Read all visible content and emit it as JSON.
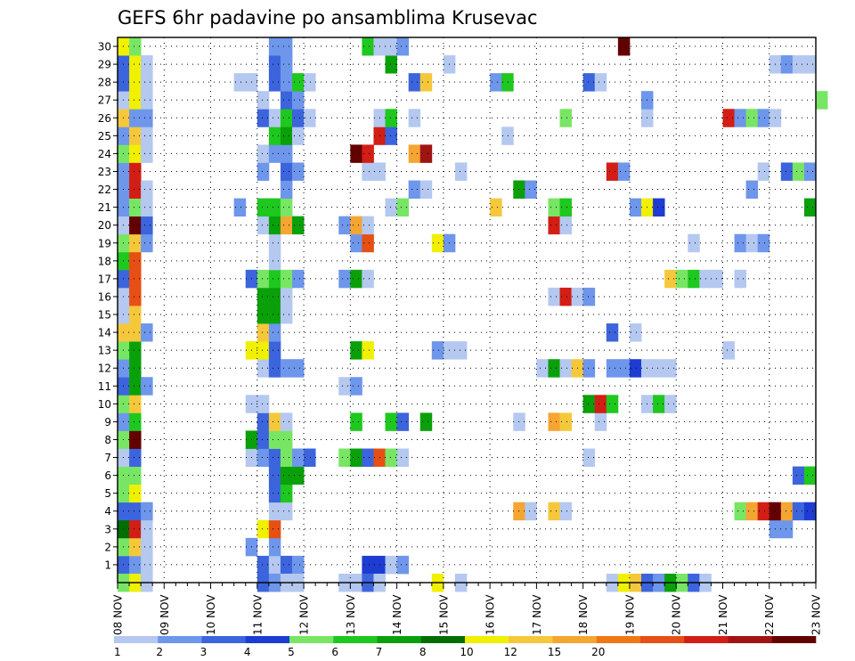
{
  "chart_data": {
    "type": "heatmap",
    "title": "GEFS 6hr padavine po ansamblima Krusevac",
    "xlabel": "",
    "ylabel": "",
    "x_ticks": [
      "08 NOV",
      "09 NOV",
      "10 NOV",
      "11 NOV",
      "12 NOV",
      "13 NOV",
      "14 NOV",
      "15 NOV",
      "16 NOV",
      "17 NOV",
      "18 NOV",
      "19 NOV",
      "20 NOV",
      "21 NOV",
      "22 NOV",
      "23 NOV"
    ],
    "y_ticks": [
      1,
      2,
      3,
      4,
      5,
      6,
      7,
      8,
      9,
      10,
      11,
      12,
      13,
      14,
      15,
      16,
      17,
      18,
      19,
      20,
      21,
      22,
      23,
      24,
      25,
      26,
      27,
      28,
      29,
      30
    ],
    "x_range": [
      "08 NOV 00z",
      "23 NOV 00z"
    ],
    "steps_per_day": 4,
    "y_range": [
      0,
      30
    ],
    "grid": true,
    "colorbar": {
      "colors": [
        "#b4c8f0",
        "#6e96eb",
        "#3c64dc",
        "#1e3cd2",
        "#78e664",
        "#1ec81e",
        "#0aa00a",
        "#006e00",
        "#f0f000",
        "#f5c83c",
        "#f5a532",
        "#f07814",
        "#e65014",
        "#d21e14",
        "#a01414",
        "#640000"
      ],
      "labels": [
        "1",
        "2",
        "3",
        "4",
        "5",
        "6",
        "7",
        "8",
        "10",
        "12",
        "15",
        "20"
      ]
    },
    "cells": [
      [
        1,
        0,
        3
      ],
      [
        1,
        1,
        2
      ],
      [
        1,
        2,
        1
      ],
      [
        1,
        12,
        3
      ],
      [
        1,
        13,
        1
      ],
      [
        1,
        14,
        3
      ],
      [
        1,
        15,
        2
      ],
      [
        1,
        21,
        4
      ],
      [
        1,
        22,
        4
      ],
      [
        1,
        23,
        1
      ],
      [
        1,
        24,
        2
      ],
      [
        2,
        0,
        5
      ],
      [
        2,
        1,
        10
      ],
      [
        2,
        2,
        1
      ],
      [
        2,
        11,
        2
      ],
      [
        2,
        13,
        2
      ],
      [
        3,
        0,
        8
      ],
      [
        3,
        1,
        14
      ],
      [
        3,
        2,
        1
      ],
      [
        3,
        12,
        9
      ],
      [
        3,
        13,
        13
      ],
      [
        3,
        56,
        2
      ],
      [
        3,
        57,
        2
      ],
      [
        4,
        0,
        3
      ],
      [
        4,
        1,
        3
      ],
      [
        4,
        2,
        2
      ],
      [
        4,
        13,
        1
      ],
      [
        4,
        14,
        1
      ],
      [
        4,
        34,
        11
      ],
      [
        4,
        35,
        1
      ],
      [
        4,
        37,
        10
      ],
      [
        4,
        38,
        1
      ],
      [
        4,
        53,
        5
      ],
      [
        4,
        54,
        11
      ],
      [
        4,
        55,
        14
      ],
      [
        4,
        56,
        16
      ],
      [
        4,
        57,
        11
      ],
      [
        4,
        58,
        3
      ],
      [
        4,
        59,
        4
      ],
      [
        5,
        0,
        5
      ],
      [
        5,
        1,
        9
      ],
      [
        5,
        13,
        3
      ],
      [
        5,
        14,
        6
      ],
      [
        6,
        0,
        5
      ],
      [
        6,
        1,
        5
      ],
      [
        6,
        13,
        3
      ],
      [
        6,
        14,
        7
      ],
      [
        6,
        15,
        7
      ],
      [
        6,
        58,
        3
      ],
      [
        6,
        59,
        6
      ],
      [
        7,
        0,
        1
      ],
      [
        7,
        1,
        3
      ],
      [
        7,
        11,
        1
      ],
      [
        7,
        12,
        2
      ],
      [
        7,
        13,
        3
      ],
      [
        7,
        14,
        5
      ],
      [
        7,
        15,
        2
      ],
      [
        7,
        16,
        3
      ],
      [
        7,
        19,
        5
      ],
      [
        7,
        20,
        7
      ],
      [
        7,
        21,
        3
      ],
      [
        7,
        22,
        13
      ],
      [
        7,
        23,
        5
      ],
      [
        7,
        24,
        1
      ],
      [
        7,
        40,
        1
      ],
      [
        8,
        0,
        5
      ],
      [
        8,
        1,
        16
      ],
      [
        8,
        11,
        7
      ],
      [
        8,
        12,
        3
      ],
      [
        8,
        13,
        5
      ],
      [
        8,
        14,
        5
      ],
      [
        9,
        0,
        2
      ],
      [
        9,
        1,
        6
      ],
      [
        9,
        12,
        3
      ],
      [
        9,
        13,
        10
      ],
      [
        9,
        14,
        1
      ],
      [
        9,
        20,
        6
      ],
      [
        9,
        23,
        6
      ],
      [
        9,
        24,
        3
      ],
      [
        9,
        26,
        7
      ],
      [
        9,
        34,
        1
      ],
      [
        9,
        37,
        11
      ],
      [
        9,
        38,
        10
      ],
      [
        9,
        41,
        1
      ],
      [
        10,
        0,
        5
      ],
      [
        10,
        1,
        10
      ],
      [
        10,
        11,
        1
      ],
      [
        10,
        12,
        1
      ],
      [
        10,
        40,
        7
      ],
      [
        10,
        41,
        14
      ],
      [
        10,
        42,
        6
      ],
      [
        10,
        45,
        1
      ],
      [
        10,
        46,
        6
      ],
      [
        10,
        47,
        1
      ],
      [
        11,
        0,
        3
      ],
      [
        11,
        1,
        7
      ],
      [
        11,
        2,
        2
      ],
      [
        11,
        19,
        1
      ],
      [
        11,
        20,
        2
      ],
      [
        12,
        0,
        2
      ],
      [
        12,
        1,
        7
      ],
      [
        12,
        12,
        1
      ],
      [
        12,
        13,
        3
      ],
      [
        12,
        14,
        2
      ],
      [
        12,
        15,
        2
      ],
      [
        12,
        36,
        1
      ],
      [
        12,
        37,
        7
      ],
      [
        12,
        38,
        1
      ],
      [
        12,
        39,
        10
      ],
      [
        12,
        40,
        2
      ],
      [
        12,
        42,
        2
      ],
      [
        12,
        43,
        2
      ],
      [
        12,
        44,
        4
      ],
      [
        12,
        45,
        1
      ],
      [
        12,
        46,
        1
      ],
      [
        12,
        47,
        1
      ],
      [
        13,
        0,
        5
      ],
      [
        13,
        1,
        7
      ],
      [
        13,
        11,
        9
      ],
      [
        13,
        12,
        9
      ],
      [
        13,
        13,
        3
      ],
      [
        13,
        20,
        7
      ],
      [
        13,
        21,
        9
      ],
      [
        13,
        27,
        2
      ],
      [
        13,
        28,
        1
      ],
      [
        13,
        29,
        1
      ],
      [
        13,
        52,
        1
      ],
      [
        14,
        0,
        10
      ],
      [
        14,
        1,
        10
      ],
      [
        14,
        2,
        2
      ],
      [
        14,
        12,
        10
      ],
      [
        14,
        13,
        2
      ],
      [
        14,
        42,
        3
      ],
      [
        14,
        44,
        1
      ],
      [
        15,
        0,
        1
      ],
      [
        15,
        1,
        10
      ],
      [
        15,
        12,
        7
      ],
      [
        15,
        13,
        7
      ],
      [
        15,
        14,
        1
      ],
      [
        16,
        0,
        1
      ],
      [
        16,
        1,
        13
      ],
      [
        16,
        12,
        7
      ],
      [
        16,
        13,
        7
      ],
      [
        16,
        14,
        1
      ],
      [
        16,
        37,
        1
      ],
      [
        16,
        38,
        14
      ],
      [
        16,
        39,
        1
      ],
      [
        16,
        40,
        2
      ],
      [
        17,
        0,
        3
      ],
      [
        17,
        1,
        13
      ],
      [
        17,
        11,
        3
      ],
      [
        17,
        12,
        5
      ],
      [
        17,
        13,
        6
      ],
      [
        17,
        14,
        5
      ],
      [
        17,
        15,
        2
      ],
      [
        17,
        19,
        2
      ],
      [
        17,
        20,
        7
      ],
      [
        17,
        21,
        1
      ],
      [
        17,
        47,
        10
      ],
      [
        17,
        48,
        5
      ],
      [
        17,
        49,
        6
      ],
      [
        17,
        50,
        1
      ],
      [
        17,
        51,
        1
      ],
      [
        17,
        53,
        1
      ],
      [
        18,
        0,
        6
      ],
      [
        18,
        1,
        13
      ],
      [
        18,
        13,
        1
      ],
      [
        19,
        0,
        5
      ],
      [
        19,
        1,
        10
      ],
      [
        19,
        2,
        2
      ],
      [
        19,
        13,
        1
      ],
      [
        19,
        20,
        2
      ],
      [
        19,
        21,
        13
      ],
      [
        19,
        27,
        9
      ],
      [
        19,
        28,
        2
      ],
      [
        19,
        49,
        1
      ],
      [
        19,
        53,
        2
      ],
      [
        19,
        54,
        1
      ],
      [
        19,
        55,
        2
      ],
      [
        20,
        0,
        1
      ],
      [
        20,
        1,
        16
      ],
      [
        20,
        2,
        3
      ],
      [
        20,
        12,
        1
      ],
      [
        20,
        13,
        7
      ],
      [
        20,
        14,
        11
      ],
      [
        20,
        15,
        7
      ],
      [
        20,
        19,
        2
      ],
      [
        20,
        20,
        11
      ],
      [
        20,
        21,
        1
      ],
      [
        20,
        37,
        14
      ],
      [
        20,
        38,
        1
      ],
      [
        21,
        0,
        2
      ],
      [
        21,
        1,
        5
      ],
      [
        21,
        2,
        1
      ],
      [
        21,
        10,
        2
      ],
      [
        21,
        12,
        6
      ],
      [
        21,
        13,
        6
      ],
      [
        21,
        14,
        5
      ],
      [
        21,
        23,
        1
      ],
      [
        21,
        24,
        5
      ],
      [
        21,
        32,
        10
      ],
      [
        21,
        37,
        5
      ],
      [
        21,
        38,
        6
      ],
      [
        21,
        44,
        2
      ],
      [
        21,
        45,
        9
      ],
      [
        21,
        46,
        4
      ],
      [
        21,
        59,
        7
      ],
      [
        22,
        0,
        2
      ],
      [
        22,
        1,
        14
      ],
      [
        22,
        2,
        1
      ],
      [
        22,
        14,
        2
      ],
      [
        22,
        25,
        2
      ],
      [
        22,
        26,
        1
      ],
      [
        22,
        34,
        7
      ],
      [
        22,
        35,
        2
      ],
      [
        22,
        54,
        2
      ],
      [
        23,
        0,
        2
      ],
      [
        23,
        1,
        14
      ],
      [
        23,
        12,
        2
      ],
      [
        23,
        14,
        3
      ],
      [
        23,
        15,
        2
      ],
      [
        23,
        21,
        1
      ],
      [
        23,
        22,
        1
      ],
      [
        23,
        29,
        1
      ],
      [
        23,
        42,
        14
      ],
      [
        23,
        43,
        2
      ],
      [
        23,
        55,
        1
      ],
      [
        23,
        57,
        3
      ],
      [
        23,
        58,
        5
      ],
      [
        23,
        59,
        2
      ],
      [
        24,
        0,
        5
      ],
      [
        24,
        1,
        9
      ],
      [
        24,
        2,
        1
      ],
      [
        24,
        12,
        1
      ],
      [
        24,
        13,
        2
      ],
      [
        24,
        14,
        2
      ],
      [
        24,
        20,
        16
      ],
      [
        24,
        21,
        14
      ],
      [
        24,
        25,
        11
      ],
      [
        24,
        26,
        15
      ],
      [
        25,
        0,
        2
      ],
      [
        25,
        1,
        10
      ],
      [
        25,
        2,
        1
      ],
      [
        25,
        13,
        6
      ],
      [
        25,
        14,
        7
      ],
      [
        25,
        15,
        1
      ],
      [
        25,
        22,
        14
      ],
      [
        25,
        23,
        3
      ],
      [
        25,
        33,
        1
      ],
      [
        26,
        0,
        10
      ],
      [
        26,
        1,
        2
      ],
      [
        26,
        2,
        2
      ],
      [
        26,
        12,
        3
      ],
      [
        26,
        13,
        1
      ],
      [
        26,
        14,
        6
      ],
      [
        26,
        15,
        3
      ],
      [
        26,
        16,
        1
      ],
      [
        26,
        22,
        1
      ],
      [
        26,
        23,
        6
      ],
      [
        26,
        25,
        1
      ],
      [
        26,
        38,
        5
      ],
      [
        26,
        45,
        1
      ],
      [
        26,
        52,
        14
      ],
      [
        26,
        53,
        2
      ],
      [
        26,
        54,
        5
      ],
      [
        26,
        55,
        2
      ],
      [
        26,
        56,
        1
      ],
      [
        27,
        0,
        1
      ],
      [
        27,
        1,
        9
      ],
      [
        27,
        2,
        1
      ],
      [
        27,
        12,
        1
      ],
      [
        27,
        14,
        3
      ],
      [
        27,
        15,
        2
      ],
      [
        27,
        45,
        2
      ],
      [
        27,
        60,
        5
      ],
      [
        28,
        0,
        3
      ],
      [
        28,
        1,
        9
      ],
      [
        28,
        2,
        1
      ],
      [
        28,
        10,
        1
      ],
      [
        28,
        11,
        1
      ],
      [
        28,
        13,
        3
      ],
      [
        28,
        14,
        2
      ],
      [
        28,
        15,
        6
      ],
      [
        28,
        16,
        1
      ],
      [
        28,
        25,
        3
      ],
      [
        28,
        26,
        10
      ],
      [
        28,
        32,
        2
      ],
      [
        28,
        33,
        6
      ],
      [
        28,
        40,
        3
      ],
      [
        28,
        41,
        1
      ],
      [
        29,
        0,
        3
      ],
      [
        29,
        1,
        9
      ],
      [
        29,
        2,
        1
      ],
      [
        29,
        13,
        3
      ],
      [
        29,
        14,
        2
      ],
      [
        29,
        23,
        7
      ],
      [
        29,
        28,
        1
      ],
      [
        29,
        56,
        1
      ],
      [
        29,
        57,
        2
      ],
      [
        29,
        58,
        1
      ],
      [
        29,
        59,
        1
      ],
      [
        30,
        0,
        9
      ],
      [
        30,
        1,
        5
      ],
      [
        30,
        13,
        2
      ],
      [
        30,
        14,
        2
      ],
      [
        30,
        21,
        6
      ],
      [
        30,
        22,
        1
      ],
      [
        30,
        23,
        1
      ],
      [
        30,
        24,
        2
      ],
      [
        30,
        43,
        16
      ],
      [
        0,
        0,
        5
      ],
      [
        0,
        1,
        9
      ],
      [
        0,
        2,
        1
      ],
      [
        0,
        12,
        3
      ],
      [
        0,
        13,
        2
      ],
      [
        0,
        14,
        1
      ],
      [
        0,
        15,
        1
      ],
      [
        0,
        19,
        1
      ],
      [
        0,
        20,
        1
      ],
      [
        0,
        21,
        3
      ],
      [
        0,
        22,
        1
      ],
      [
        0,
        27,
        9
      ],
      [
        0,
        29,
        1
      ],
      [
        0,
        42,
        1
      ],
      [
        0,
        43,
        9
      ],
      [
        0,
        44,
        10
      ],
      [
        0,
        45,
        3
      ],
      [
        0,
        46,
        2
      ],
      [
        0,
        47,
        7
      ],
      [
        0,
        48,
        5
      ],
      [
        0,
        49,
        3
      ],
      [
        0,
        50,
        1
      ]
    ]
  }
}
